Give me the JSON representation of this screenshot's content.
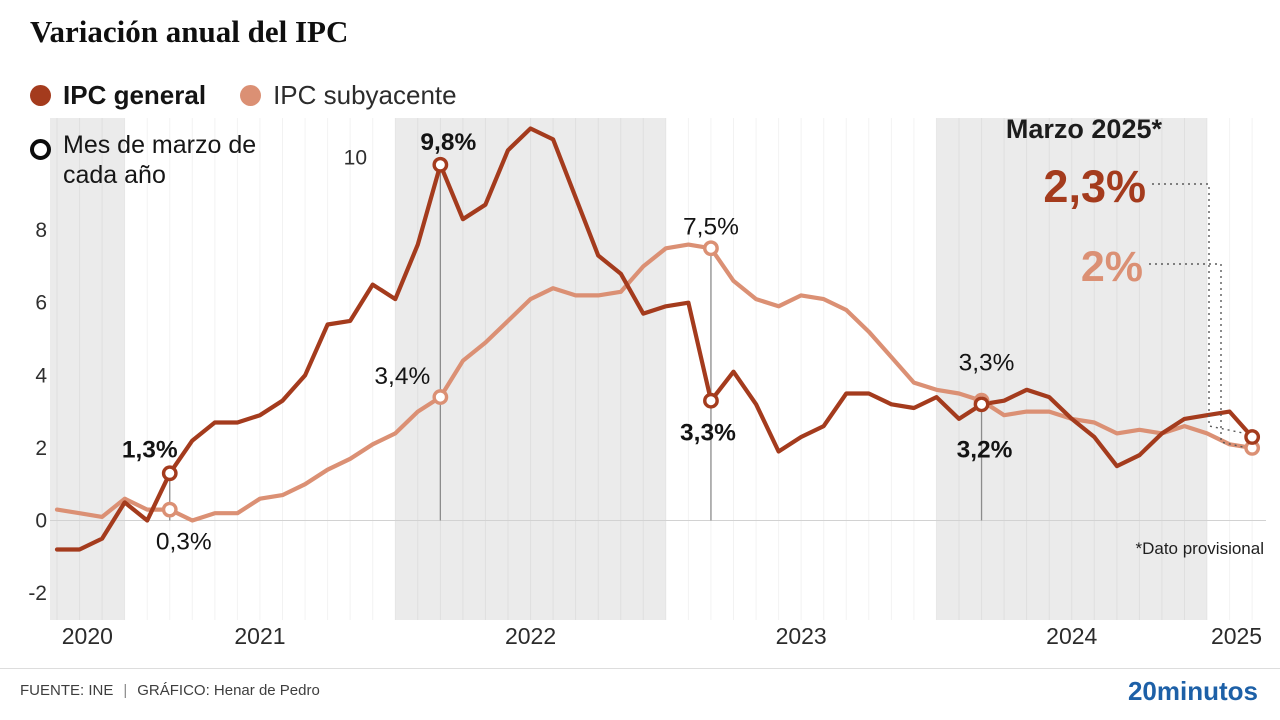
{
  "title": "Variación anual del IPC",
  "legend": {
    "general": {
      "label": "IPC general",
      "color": "#a43b1d"
    },
    "subyacente": {
      "label": "IPC subyacente",
      "color": "#db9074"
    },
    "march_note": "Mes de marzo de cada año"
  },
  "footer": {
    "source": "FUENTE: INE",
    "separator": "|",
    "credit": "GRÁFICO: Henar de Pedro",
    "brand": "20minutos",
    "brand_color": "#1d60a7"
  },
  "chart_data": {
    "type": "line",
    "title": "Variación anual del IPC",
    "ylabel": "",
    "xlabel": "",
    "ylim": [
      -2.7,
      11.1
    ],
    "yticks": [
      -2,
      0,
      2,
      4,
      6,
      8,
      10
    ],
    "grid": "monthly-vertical",
    "months": [
      "2020-10",
      "2020-11",
      "2020-12",
      "2021-01",
      "2021-02",
      "2021-03",
      "2021-04",
      "2021-05",
      "2021-06",
      "2021-07",
      "2021-08",
      "2021-09",
      "2021-10",
      "2021-11",
      "2021-12",
      "2022-01",
      "2022-02",
      "2022-03",
      "2022-04",
      "2022-05",
      "2022-06",
      "2022-07",
      "2022-08",
      "2022-09",
      "2022-10",
      "2022-11",
      "2022-12",
      "2023-01",
      "2023-02",
      "2023-03",
      "2023-04",
      "2023-05",
      "2023-06",
      "2023-07",
      "2023-08",
      "2023-09",
      "2023-10",
      "2023-11",
      "2023-12",
      "2024-01",
      "2024-02",
      "2024-03",
      "2024-04",
      "2024-05",
      "2024-06",
      "2024-07",
      "2024-08",
      "2024-09",
      "2024-10",
      "2024-11",
      "2024-12",
      "2025-01",
      "2025-02",
      "2025-03"
    ],
    "series": [
      {
        "name": "IPC general",
        "color": "#a43b1d",
        "values": [
          -0.8,
          -0.8,
          -0.5,
          0.5,
          0.0,
          1.3,
          2.2,
          2.7,
          2.7,
          2.9,
          3.3,
          4.0,
          5.4,
          5.5,
          6.5,
          6.1,
          7.6,
          9.8,
          8.3,
          8.7,
          10.2,
          10.8,
          10.5,
          8.9,
          7.3,
          6.8,
          5.7,
          5.9,
          6.0,
          3.3,
          4.1,
          3.2,
          1.9,
          2.3,
          2.6,
          3.5,
          3.5,
          3.2,
          3.1,
          3.4,
          2.8,
          3.2,
          3.3,
          3.6,
          3.4,
          2.8,
          2.3,
          1.5,
          1.8,
          2.4,
          2.8,
          2.9,
          3.0,
          2.3
        ]
      },
      {
        "name": "IPC subyacente",
        "color": "#db9074",
        "values": [
          0.3,
          0.2,
          0.1,
          0.6,
          0.3,
          0.3,
          0.0,
          0.2,
          0.2,
          0.6,
          0.7,
          1.0,
          1.4,
          1.7,
          2.1,
          2.4,
          3.0,
          3.4,
          4.4,
          4.9,
          5.5,
          6.1,
          6.4,
          6.2,
          6.2,
          6.3,
          7.0,
          7.5,
          7.6,
          7.5,
          6.6,
          6.1,
          5.9,
          6.2,
          6.1,
          5.8,
          5.2,
          4.5,
          3.8,
          3.6,
          3.5,
          3.3,
          2.9,
          3.0,
          3.0,
          2.8,
          2.7,
          2.4,
          2.5,
          2.4,
          2.6,
          2.4,
          2.1,
          2.0
        ]
      }
    ],
    "years": [
      {
        "label": "2020",
        "start_index": 0,
        "shaded": true
      },
      {
        "label": "2021",
        "start_index": 3,
        "shaded": false
      },
      {
        "label": "2022",
        "start_index": 15,
        "shaded": true
      },
      {
        "label": "2023",
        "start_index": 27,
        "shaded": false
      },
      {
        "label": "2024",
        "start_index": 39,
        "shaded": true
      },
      {
        "label": "2025",
        "start_index": 51,
        "shaded": false
      }
    ],
    "march_markers": [
      {
        "year": 2021,
        "index": 5,
        "general_label": "1,3%",
        "subyacente_label": "0,3%"
      },
      {
        "year": 2022,
        "index": 17,
        "general_label": "9,8%",
        "subyacente_label": "3,4%"
      },
      {
        "year": 2023,
        "index": 29,
        "general_label": "3,3%",
        "subyacente_label": "7,5%"
      },
      {
        "year": 2024,
        "index": 41,
        "general_label": "3,2%",
        "subyacente_label": "3,3%"
      },
      {
        "year": 2025,
        "index": 53,
        "general_label": "2,3%",
        "subyacente_label": "2%",
        "big": true
      }
    ],
    "annotation": {
      "title": "Marzo 2025*",
      "general_value": "2,3%",
      "subyacente_value": "2%"
    },
    "provisional_note": "*Dato provisional",
    "band_color": "#ebebeb"
  }
}
